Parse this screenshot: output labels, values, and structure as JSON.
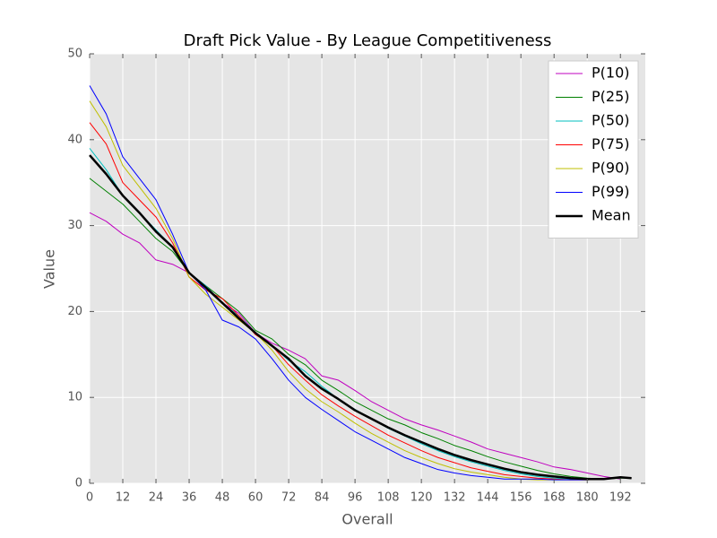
{
  "chart_data": {
    "type": "line",
    "title": "Draft Pick Value - By League Competitiveness",
    "x_label": "Overall",
    "y_label": "Value",
    "x": [
      0,
      6,
      12,
      18,
      24,
      30,
      36,
      42,
      48,
      54,
      60,
      66,
      72,
      78,
      84,
      90,
      96,
      102,
      108,
      114,
      120,
      126,
      132,
      138,
      144,
      150,
      156,
      162,
      168,
      174,
      180,
      186,
      192,
      196
    ],
    "series": [
      {
        "name": "P(10)",
        "color": "#bf00bf",
        "width": 1,
        "values": [
          31.5,
          30.5,
          29,
          28,
          26,
          25.5,
          24.5,
          23,
          21,
          19.8,
          17.5,
          16.3,
          15.5,
          14.5,
          12.5,
          12,
          10.8,
          9.5,
          8.5,
          7.5,
          6.8,
          6.2,
          5.5,
          4.8,
          4.0,
          3.5,
          3.0,
          2.5,
          1.9,
          1.6,
          1.2,
          0.8,
          0.5,
          null
        ]
      },
      {
        "name": "P(25)",
        "color": "#008000",
        "width": 1,
        "values": [
          35.5,
          34,
          32.5,
          30.5,
          28.5,
          27,
          24.5,
          23,
          21.5,
          20,
          17.8,
          16.8,
          15,
          13.8,
          12,
          10.8,
          9.5,
          8.5,
          7.5,
          6.8,
          5.9,
          5.2,
          4.4,
          3.8,
          3.1,
          2.5,
          2.0,
          1.5,
          1.1,
          0.8,
          0.6,
          0.5,
          0.6,
          0.6
        ]
      },
      {
        "name": "P(50)",
        "color": "#00bfbf",
        "width": 1,
        "values": [
          39,
          36.5,
          33.5,
          31.5,
          29.5,
          27.5,
          24.5,
          23,
          21,
          19.5,
          17.5,
          16,
          14.3,
          13,
          11.3,
          9.8,
          8.6,
          7.5,
          6.4,
          5.5,
          4.6,
          3.8,
          3.1,
          2.5,
          2.0,
          1.5,
          1.1,
          0.8,
          0.6,
          0.5,
          0.4,
          0.5,
          0.7,
          0.6
        ]
      },
      {
        "name": "P(75)",
        "color": "#ff0000",
        "width": 1,
        "values": [
          42,
          39.5,
          35,
          33,
          31,
          28,
          24,
          22.5,
          21.5,
          19.5,
          17.3,
          16,
          13.8,
          12,
          10.3,
          9,
          7.8,
          6.7,
          5.6,
          4.7,
          3.8,
          3.0,
          2.4,
          1.8,
          1.4,
          1.0,
          0.8,
          0.6,
          0.5,
          0.4,
          0.4,
          0.5,
          0.7,
          0.6
        ]
      },
      {
        "name": "P(90)",
        "color": "#bfbf00",
        "width": 1,
        "values": [
          44.5,
          41.5,
          37,
          34.5,
          32,
          28.5,
          24,
          22,
          20.5,
          19,
          17.5,
          15.5,
          13,
          11,
          9.5,
          8.3,
          7,
          5.8,
          4.8,
          3.8,
          3.0,
          2.3,
          1.7,
          1.3,
          1.0,
          0.7,
          0.5,
          0.4,
          0.4,
          0.4,
          0.4,
          0.5,
          0.7,
          0.6
        ]
      },
      {
        "name": "P(99)",
        "color": "#0000ff",
        "width": 1,
        "values": [
          46.3,
          43,
          38,
          35.5,
          33,
          29,
          24.5,
          22.5,
          19,
          18.2,
          16.8,
          14.5,
          12,
          10,
          8.6,
          7.3,
          6,
          5,
          4,
          3.0,
          2.3,
          1.6,
          1.2,
          0.9,
          0.7,
          0.5,
          0.5,
          0.5,
          0.4,
          0.4,
          0.4,
          0.5,
          0.7,
          0.6
        ]
      },
      {
        "name": "Mean",
        "color": "#000000",
        "width": 2.5,
        "values": [
          38.2,
          36,
          33.5,
          31.5,
          29.3,
          27.5,
          24.5,
          22.8,
          21,
          19.2,
          17.5,
          16,
          14.5,
          12.5,
          11,
          9.8,
          8.5,
          7.5,
          6.5,
          5.6,
          4.8,
          4,
          3.3,
          2.7,
          2.2,
          1.7,
          1.3,
          1.0,
          0.8,
          0.6,
          0.5,
          0.5,
          0.7,
          0.6
        ]
      }
    ],
    "xlim": [
      0,
      201
    ],
    "ylim": [
      0,
      50
    ],
    "xticks": [
      0,
      12,
      24,
      36,
      48,
      60,
      72,
      84,
      96,
      108,
      120,
      132,
      144,
      156,
      168,
      180,
      192
    ],
    "yticks": [
      0,
      10,
      20,
      30,
      40,
      50
    ],
    "grid": true,
    "legend": "upper right"
  }
}
